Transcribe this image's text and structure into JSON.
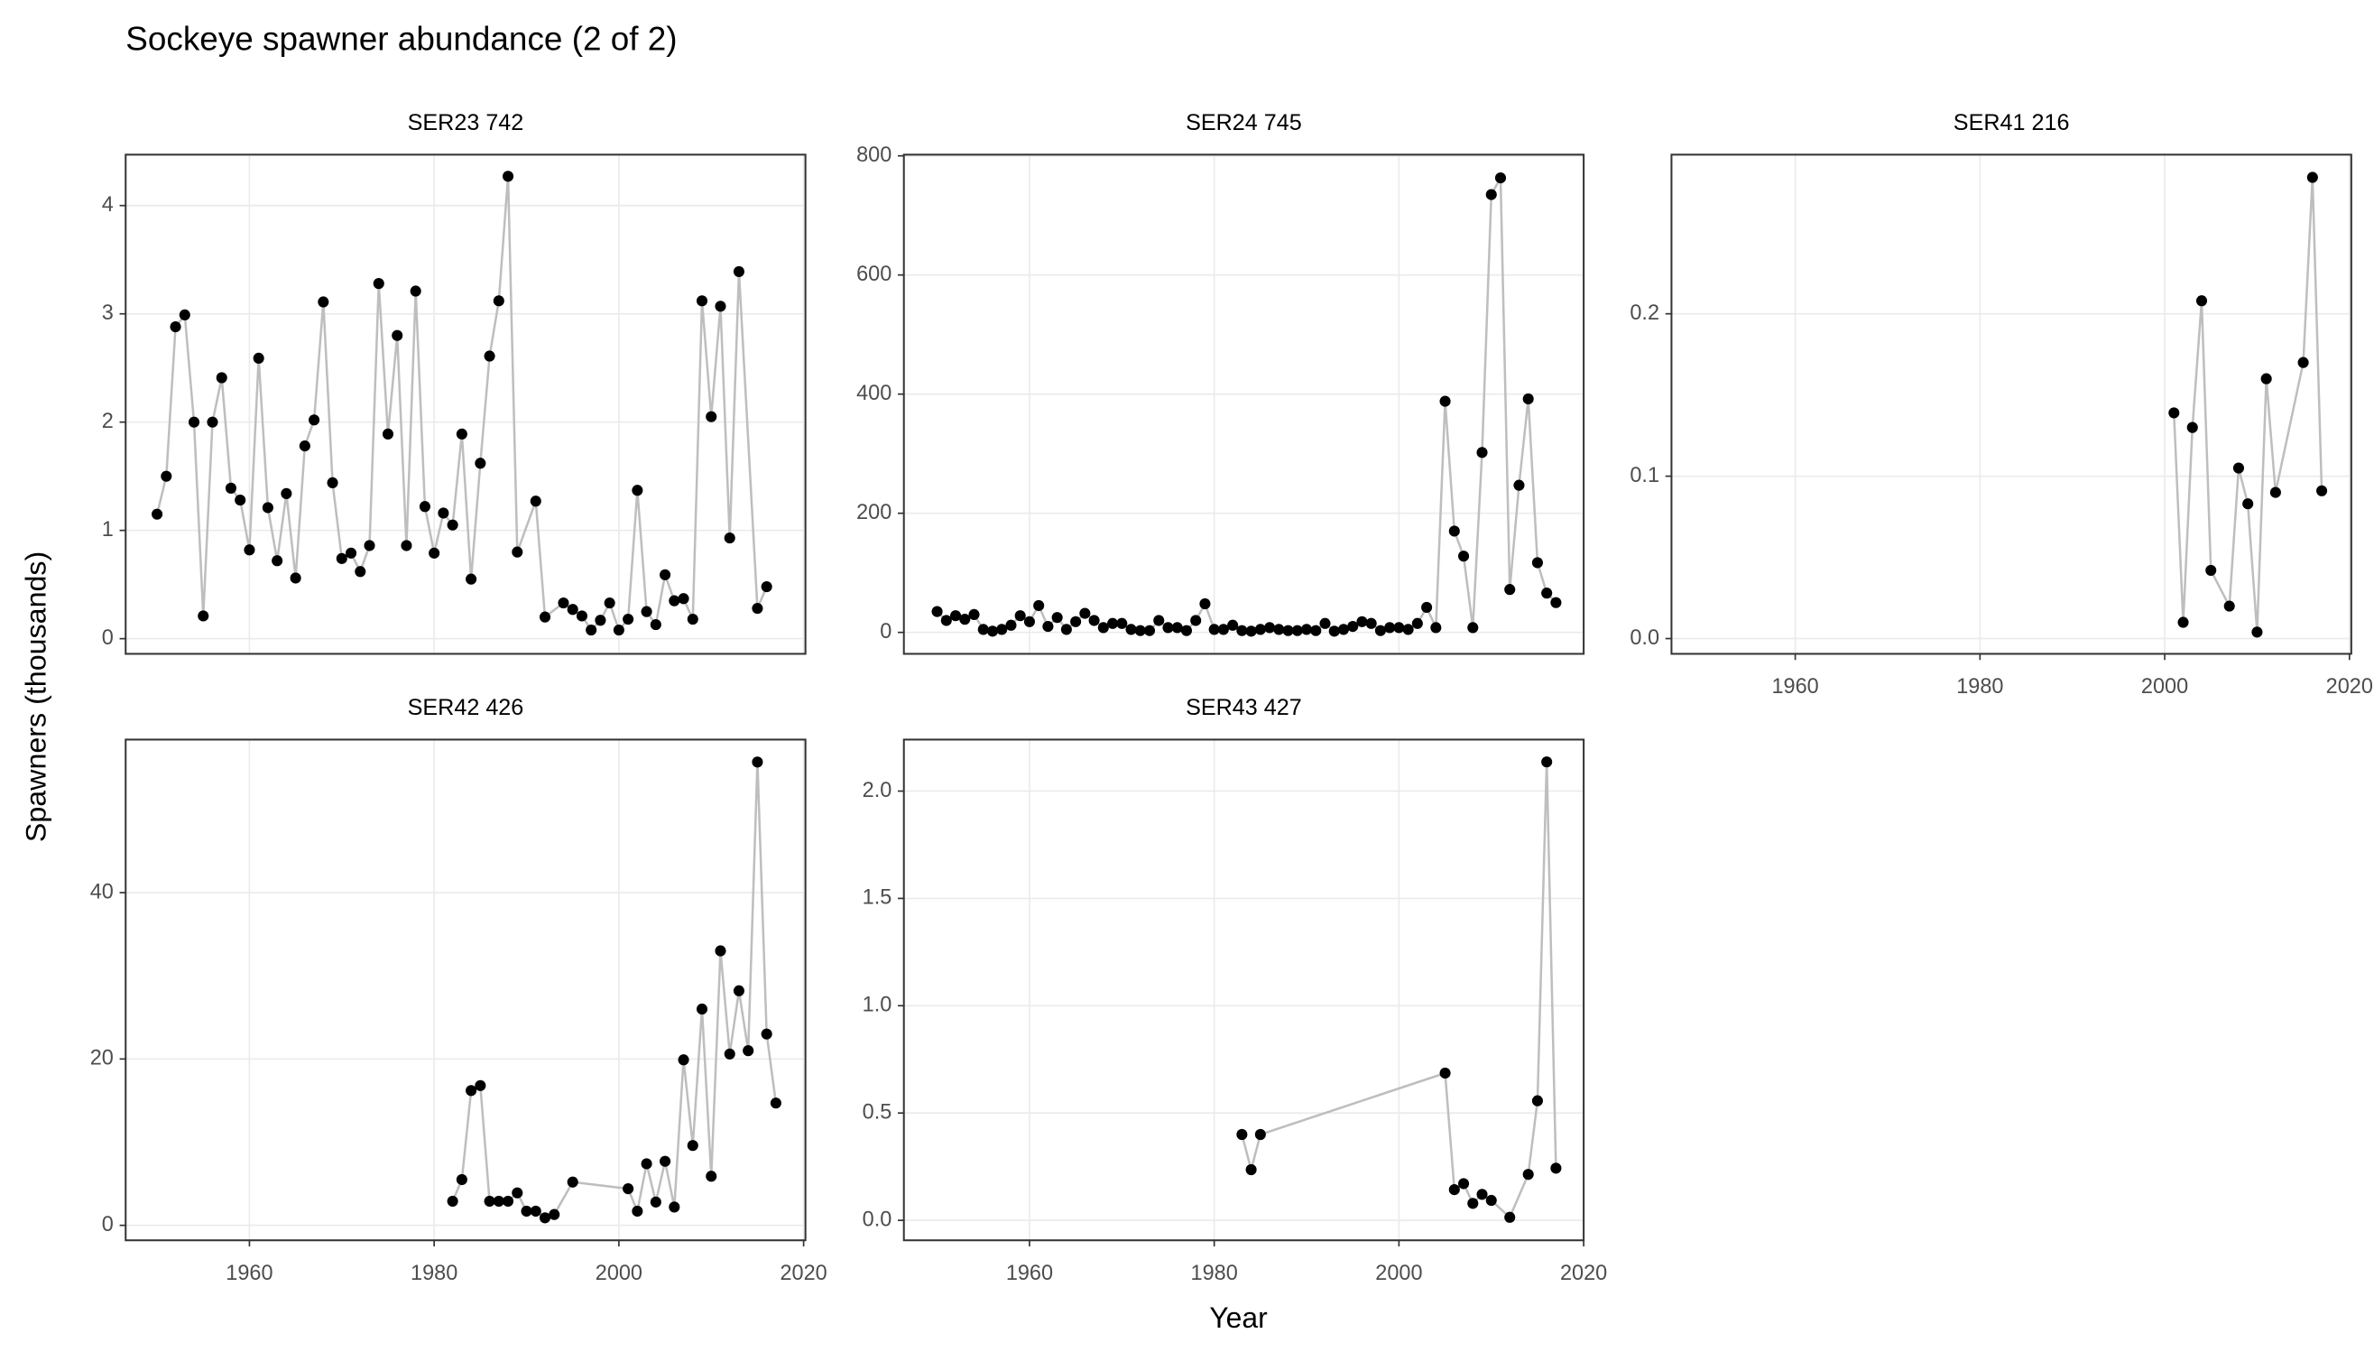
{
  "title": "Sockeye spawner abundance (2 of 2)",
  "x_label": "Year",
  "y_label": "Spawners (thousands)",
  "chart_data": [
    {
      "type": "line",
      "title": "SER23 742",
      "line_color": "#bebebe",
      "point_color": "#000000",
      "x": [
        1950,
        1951,
        1952,
        1953,
        1954,
        1955,
        1956,
        1957,
        1958,
        1959,
        1960,
        1961,
        1962,
        1963,
        1964,
        1965,
        1966,
        1967,
        1968,
        1969,
        1970,
        1971,
        1972,
        1973,
        1974,
        1975,
        1976,
        1977,
        1978,
        1979,
        1980,
        1981,
        1982,
        1983,
        1984,
        1985,
        1986,
        1987,
        1988,
        1989,
        1991,
        1992,
        1994,
        1995,
        1996,
        1997,
        1998,
        1999,
        2000,
        2001,
        2002,
        2003,
        2004,
        2005,
        2006,
        2007,
        2008,
        2009,
        2010,
        2011,
        2012,
        2013,
        2015,
        2016
      ],
      "values": [
        1.15,
        1.5,
        2.88,
        2.99,
        2.0,
        0.21,
        2.0,
        2.41,
        1.39,
        1.28,
        0.82,
        2.59,
        1.21,
        0.72,
        1.34,
        0.56,
        1.78,
        2.02,
        3.11,
        1.44,
        0.74,
        0.79,
        0.62,
        0.86,
        3.28,
        1.89,
        2.8,
        0.86,
        3.21,
        1.22,
        0.79,
        1.16,
        1.05,
        1.89,
        0.55,
        1.62,
        2.61,
        3.12,
        4.27,
        0.8,
        1.27,
        0.2,
        0.33,
        0.27,
        0.21,
        0.08,
        0.17,
        0.33,
        0.08,
        0.18,
        1.37,
        0.25,
        0.13,
        0.59,
        0.35,
        0.37,
        0.18,
        3.12,
        2.05,
        3.07,
        0.93,
        3.39,
        0.28,
        0.48
      ],
      "xlim": [
        1946.6,
        2020.2
      ],
      "ylim": [
        -0.14,
        4.47
      ],
      "xticks": [
        1960,
        1980,
        2000,
        2020
      ],
      "yticks": [
        0,
        1,
        2,
        3,
        4
      ],
      "grid": true
    },
    {
      "type": "line",
      "title": "SER24 745",
      "line_color": "#bebebe",
      "point_color": "#000000",
      "x": [
        1950,
        1951,
        1952,
        1953,
        1954,
        1955,
        1956,
        1957,
        1958,
        1959,
        1960,
        1961,
        1962,
        1963,
        1964,
        1965,
        1966,
        1967,
        1968,
        1969,
        1970,
        1971,
        1972,
        1973,
        1974,
        1975,
        1976,
        1977,
        1978,
        1979,
        1980,
        1981,
        1982,
        1983,
        1984,
        1985,
        1986,
        1987,
        1988,
        1989,
        1990,
        1991,
        1992,
        1993,
        1994,
        1995,
        1996,
        1997,
        1998,
        1999,
        2000,
        2001,
        2002,
        2003,
        2004,
        2005,
        2006,
        2007,
        2008,
        2009,
        2010,
        2011,
        2012,
        2013,
        2014,
        2015,
        2016,
        2017
      ],
      "values": [
        35,
        20,
        28,
        22,
        30,
        5,
        2,
        5,
        12,
        28,
        18,
        45,
        10,
        25,
        5,
        18,
        32,
        20,
        8,
        15,
        15,
        5,
        3,
        3,
        20,
        8,
        8,
        3,
        20,
        48,
        5,
        5,
        12,
        3,
        2,
        5,
        8,
        5,
        3,
        3,
        5,
        3,
        15,
        2,
        5,
        10,
        18,
        15,
        3,
        8,
        8,
        5,
        15,
        42,
        8,
        388,
        170,
        128,
        8,
        302,
        735,
        763,
        72,
        247,
        392,
        117,
        66,
        50
      ],
      "xlim": [
        1946.4,
        2020.0
      ],
      "ylim": [
        -36,
        802
      ],
      "xticks": [
        1960,
        1980,
        2000,
        2020
      ],
      "yticks": [
        0,
        200,
        400,
        600,
        800
      ],
      "grid": true
    },
    {
      "type": "line",
      "title": "SER41 216",
      "line_color": "#bebebe",
      "point_color": "#000000",
      "x": [
        2001,
        2002,
        2003,
        2004,
        2005,
        2007,
        2008,
        2009,
        2010,
        2011,
        2012,
        2015,
        2016,
        2017
      ],
      "values": [
        0.139,
        0.01,
        0.13,
        0.208,
        0.042,
        0.02,
        0.105,
        0.083,
        0.004,
        0.16,
        0.09,
        0.17,
        0.284,
        0.091
      ],
      "xlim": [
        1946.6,
        2020.2
      ],
      "ylim": [
        -0.0094,
        0.298
      ],
      "xticks": [
        1960,
        1980,
        2000,
        2020
      ],
      "yticks": [
        {
          "value": 0,
          "label": "0.0"
        },
        0.1,
        0.2
      ],
      "grid": true
    },
    {
      "type": "line",
      "title": "SER42 426",
      "line_color": "#bebebe",
      "point_color": "#000000",
      "x": [
        1982,
        1983,
        1984,
        1985,
        1986,
        1987,
        1988,
        1989,
        1990,
        1991,
        1992,
        1993,
        1995,
        2001,
        2002,
        2003,
        2004,
        2005,
        2006,
        2007,
        2008,
        2009,
        2010,
        2011,
        2012,
        2013,
        2014,
        2015,
        2016,
        2017
      ],
      "values": [
        2.9,
        5.5,
        16.2,
        16.8,
        2.9,
        2.9,
        2.9,
        3.9,
        1.7,
        1.7,
        0.9,
        1.3,
        5.2,
        4.4,
        1.7,
        7.4,
        2.8,
        7.7,
        2.2,
        19.9,
        9.6,
        26,
        5.9,
        33,
        20.6,
        28.2,
        21,
        55.7,
        23,
        14.7
      ],
      "xlim": [
        1946.6,
        2020.2
      ],
      "ylim": [
        -1.8,
        58.4
      ],
      "xticks": [
        1960,
        1980,
        2000,
        2020
      ],
      "yticks": [
        0,
        20,
        40
      ],
      "grid": true
    },
    {
      "type": "line",
      "title": "SER43 427",
      "line_color": "#bebebe",
      "point_color": "#000000",
      "x": [
        1983,
        1984,
        1985,
        2005,
        2006,
        2007,
        2008,
        2009,
        2010,
        2012,
        2014,
        2015,
        2016,
        2017
      ],
      "values": [
        0.4,
        0.236,
        0.4,
        0.686,
        0.143,
        0.171,
        0.079,
        0.121,
        0.093,
        0.014,
        0.214,
        0.557,
        2.136,
        0.243
      ],
      "xlim": [
        1946.4,
        2020.0
      ],
      "ylim": [
        -0.093,
        2.24
      ],
      "xticks": [
        1960,
        1980,
        2000,
        2020
      ],
      "yticks": [
        {
          "value": 0,
          "label": "0.0"
        },
        0.5,
        {
          "value": 1,
          "label": "1.0"
        },
        1.5,
        {
          "value": 2,
          "label": "2.0"
        }
      ],
      "grid": true
    }
  ]
}
